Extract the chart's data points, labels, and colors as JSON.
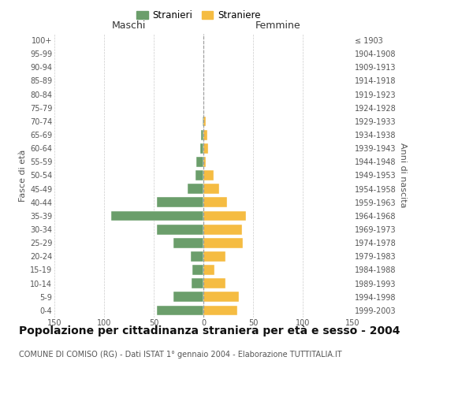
{
  "age_groups": [
    "0-4",
    "5-9",
    "10-14",
    "15-19",
    "20-24",
    "25-29",
    "30-34",
    "35-39",
    "40-44",
    "45-49",
    "50-54",
    "55-59",
    "60-64",
    "65-69",
    "70-74",
    "75-79",
    "80-84",
    "85-89",
    "90-94",
    "95-99",
    "100+"
  ],
  "birth_years": [
    "1999-2003",
    "1994-1998",
    "1989-1993",
    "1984-1988",
    "1979-1983",
    "1974-1978",
    "1969-1973",
    "1964-1968",
    "1959-1963",
    "1954-1958",
    "1949-1953",
    "1944-1948",
    "1939-1943",
    "1934-1938",
    "1929-1933",
    "1924-1928",
    "1919-1923",
    "1914-1918",
    "1909-1913",
    "1904-1908",
    "≤ 1903"
  ],
  "males": [
    47,
    30,
    12,
    11,
    13,
    30,
    47,
    93,
    47,
    16,
    8,
    7,
    3,
    2,
    1,
    0,
    0,
    0,
    0,
    0,
    0
  ],
  "females": [
    34,
    36,
    22,
    11,
    22,
    40,
    39,
    43,
    24,
    16,
    10,
    2,
    5,
    4,
    2,
    0,
    0,
    0,
    0,
    0,
    0
  ],
  "male_color": "#6b9e6b",
  "female_color": "#f5bc42",
  "background_color": "#ffffff",
  "grid_color": "#cccccc",
  "title": "Popolazione per cittadinanza straniera per età e sesso - 2004",
  "subtitle": "COMUNE DI COMISO (RG) - Dati ISTAT 1° gennaio 2004 - Elaborazione TUTTITALIA.IT",
  "label_maschi": "Maschi",
  "label_femmine": "Femmine",
  "ylabel_left": "Fasce di età",
  "ylabel_right": "Anni di nascita",
  "xlim": 150,
  "legend_stranieri": "Stranieri",
  "legend_straniere": "Straniere",
  "title_fontsize": 10,
  "subtitle_fontsize": 7,
  "header_fontsize": 9,
  "ylabel_fontsize": 8,
  "tick_fontsize": 7,
  "legend_fontsize": 8.5
}
